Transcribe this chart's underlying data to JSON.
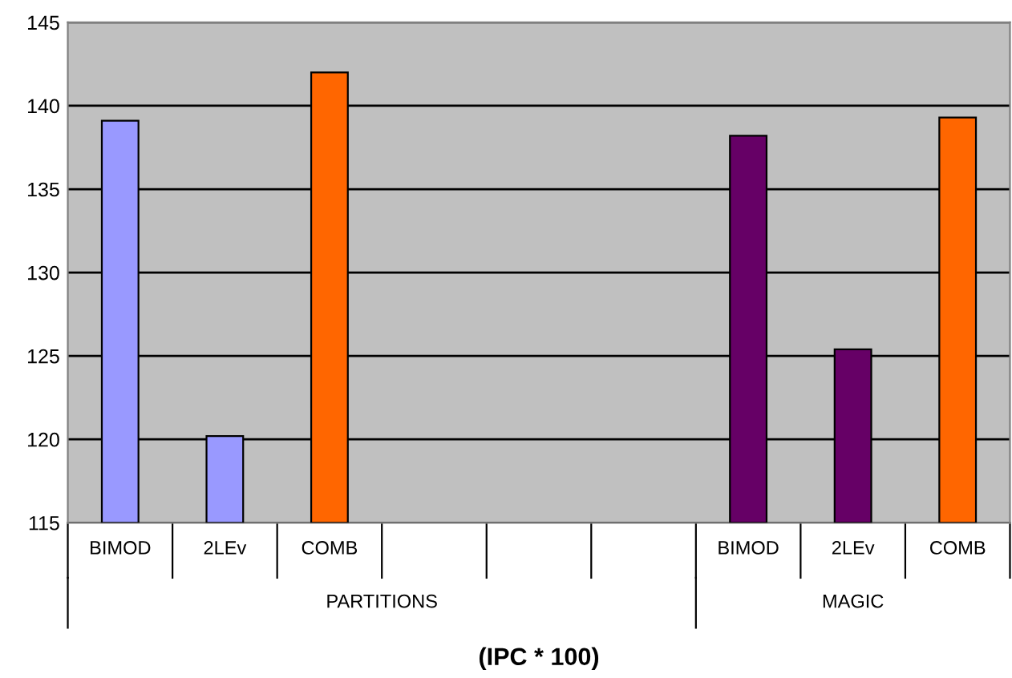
{
  "chart_data": {
    "type": "bar",
    "categories": [
      "BIMOD",
      "2LEv",
      "COMB",
      null,
      null,
      null,
      "BIMOD",
      "2LEv",
      "COMB"
    ],
    "values": [
      139.1,
      120.2,
      142.0,
      null,
      null,
      null,
      138.2,
      125.4,
      139.3
    ],
    "colors": [
      "#9999ff",
      "#9999ff",
      "#ff6600",
      "#808080",
      "#808080",
      "#808080",
      "#660066",
      "#660066",
      "#ff6600"
    ],
    "ylim": [
      115,
      145
    ],
    "yticks": [
      115,
      120,
      125,
      130,
      135,
      140,
      145
    ],
    "grid": "y",
    "xlabel": "(IPC * 100)",
    "annotations": [
      "PARTITIONS",
      "MAGIC"
    ]
  }
}
